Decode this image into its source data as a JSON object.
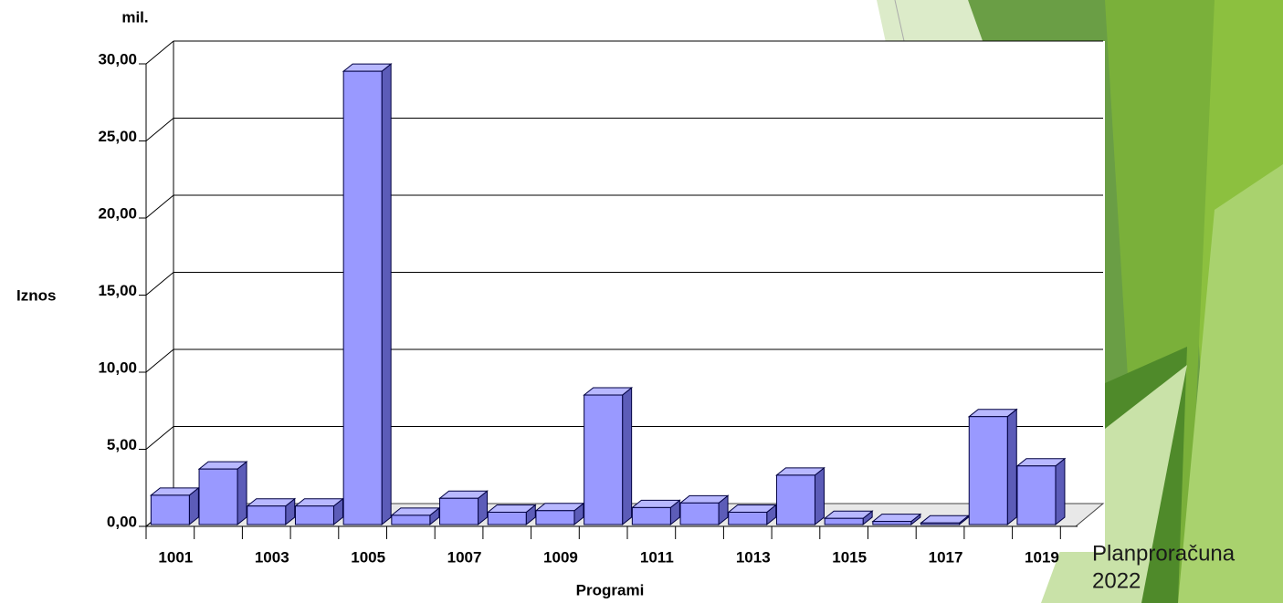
{
  "chart_data": {
    "type": "bar3d",
    "unit_label": "mil.",
    "y_label": "Iznos",
    "x_label": "Programi",
    "categories": [
      "1001",
      null,
      "1003",
      null,
      "1005",
      null,
      "1007",
      null,
      "1009",
      null,
      "1011",
      null,
      "1013",
      null,
      "1015",
      null,
      "1017",
      null,
      "1019"
    ],
    "values": [
      1.9,
      3.6,
      1.2,
      1.2,
      29.4,
      0.6,
      1.7,
      0.8,
      0.9,
      8.4,
      1.1,
      1.4,
      0.8,
      3.2,
      0.4,
      0.2,
      0.1,
      7.0,
      3.8
    ],
    "color": "#9999ff",
    "ylim": [
      0,
      30
    ],
    "yticks": [
      {
        "value": 0,
        "label": "0,00"
      },
      {
        "value": 5,
        "label": "5,00"
      },
      {
        "value": 10,
        "label": "10,00"
      },
      {
        "value": 15,
        "label": "15,00"
      },
      {
        "value": 20,
        "label": "20,00"
      },
      {
        "value": 25,
        "label": "25,00"
      },
      {
        "value": 30,
        "label": "30,00"
      }
    ],
    "grid": true
  },
  "footer": {
    "lines": [
      "Planproračuna",
      "2022"
    ]
  }
}
